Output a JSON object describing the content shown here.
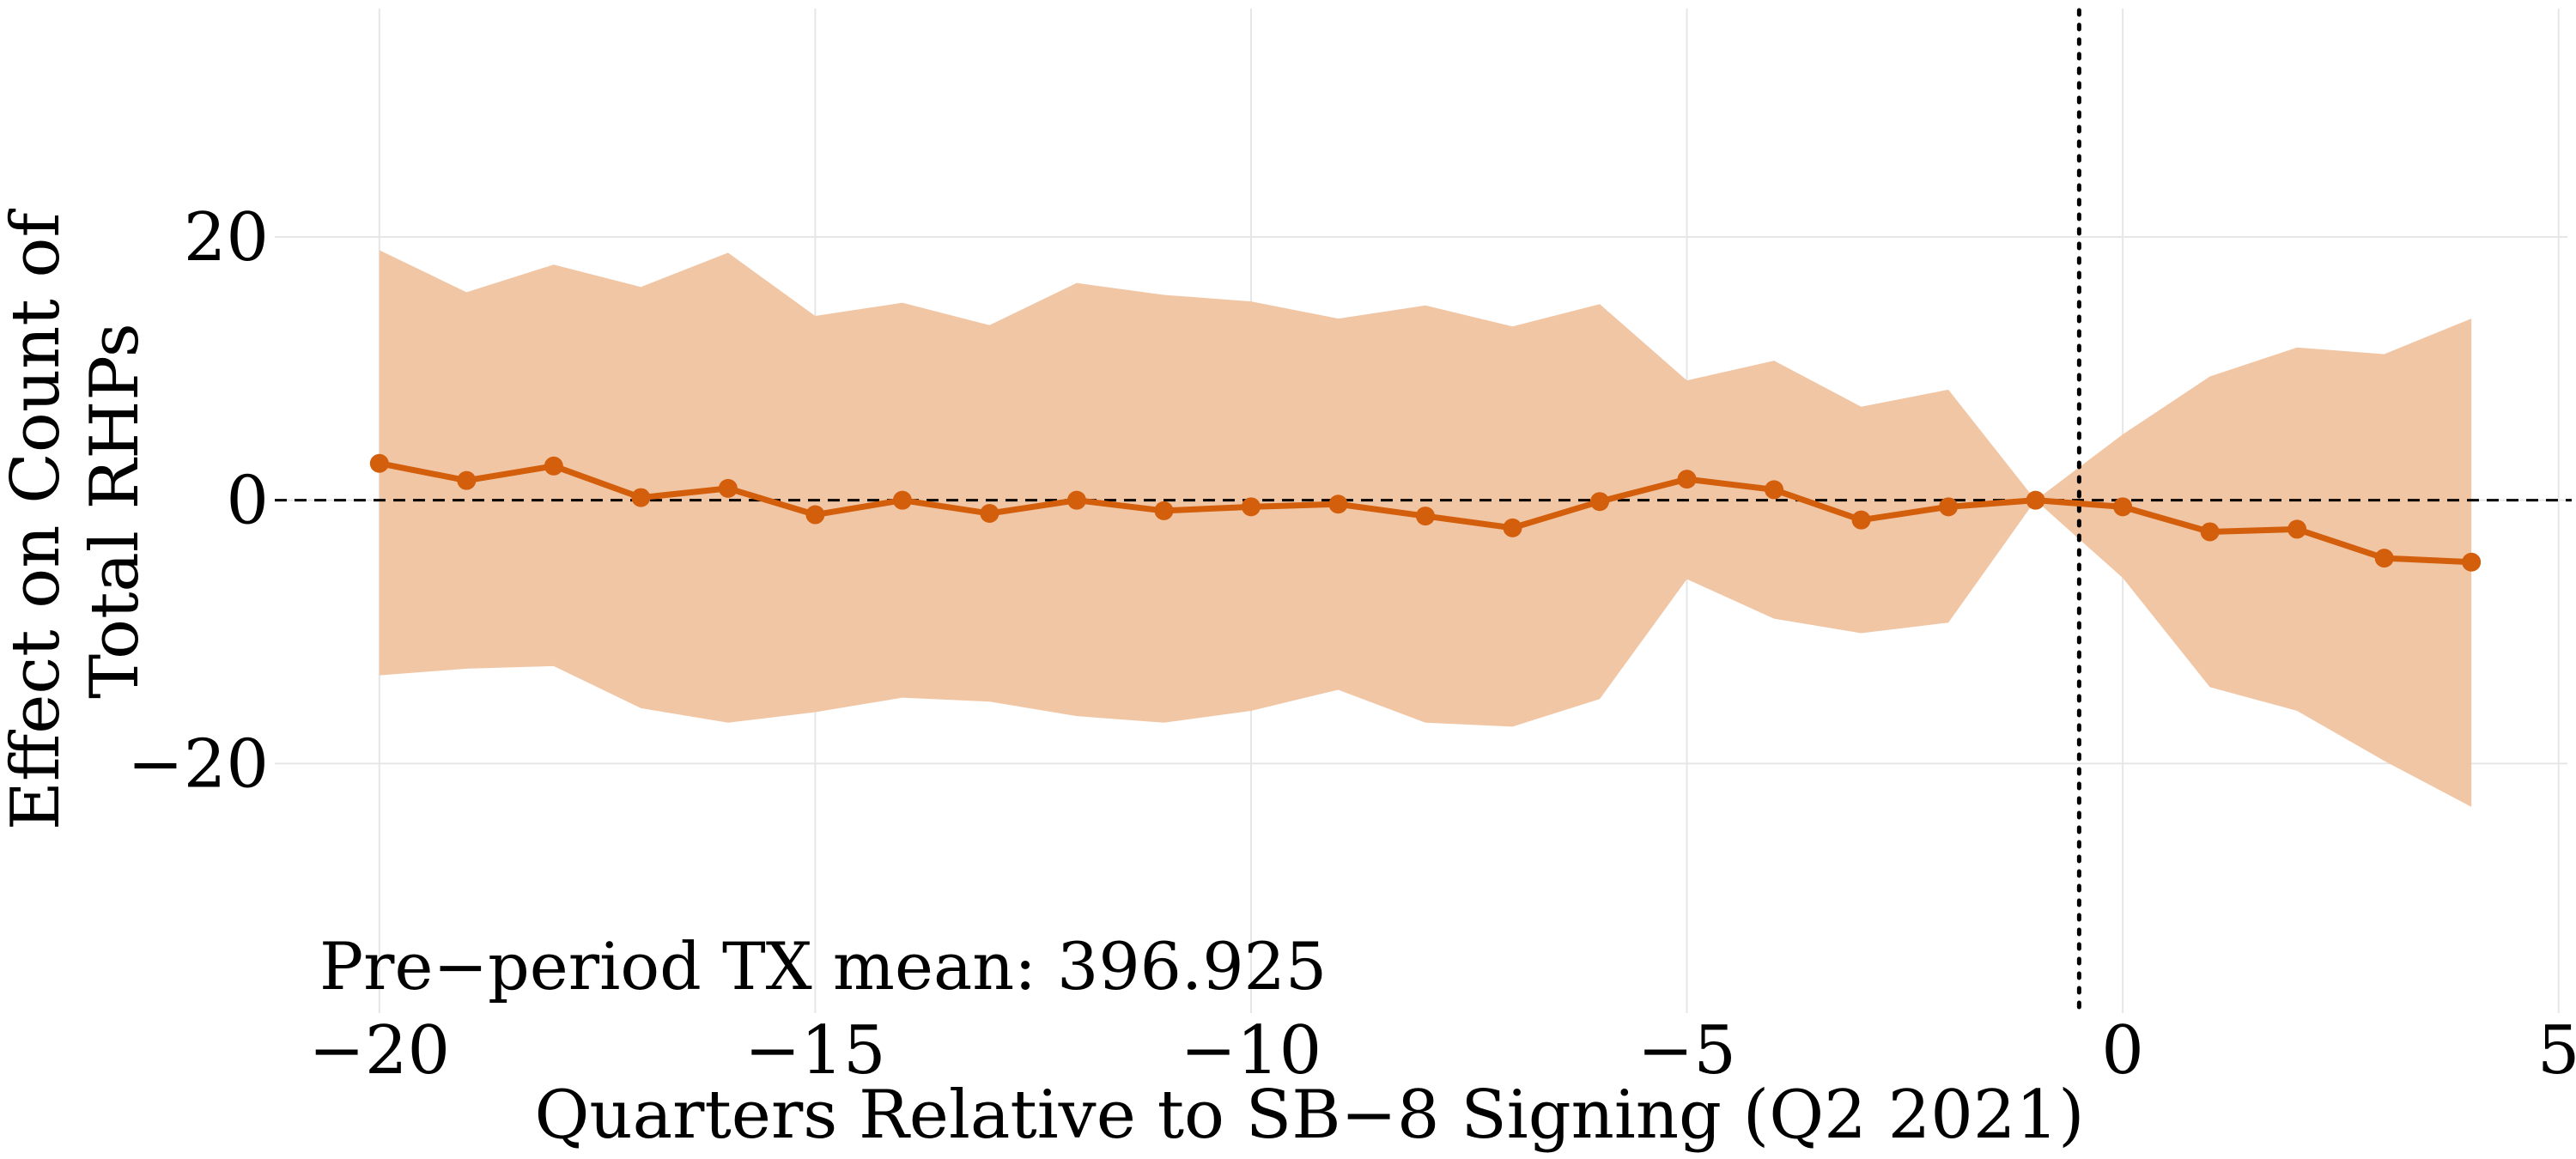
{
  "chart_data": {
    "type": "line",
    "title": "",
    "xlabel": "Quarters Relative to SB−8 Signing (Q2 2021)",
    "ylabel_lines": [
      "Effect on Count of",
      "Total RHPs"
    ],
    "xlim": [
      -21.2,
      5.2
    ],
    "ylim": [
      -37,
      38
    ],
    "x_ticks": [
      -20,
      -15,
      -10,
      -5,
      0,
      5
    ],
    "x_tick_labels": [
      "−20",
      "−15",
      "−10",
      "−5",
      "0",
      "5"
    ],
    "y_ticks": [
      -20,
      0,
      20
    ],
    "y_tick_labels": [
      "−20",
      "0",
      "20"
    ],
    "reference_hline": 0,
    "reference_vline": -0.5,
    "grid": true,
    "annotation": "Pre−period TX mean: 396.925",
    "colors": {
      "line": "#d35f0d",
      "band": "#f1c6a5",
      "reference": "#000000",
      "grid": "#e6e6e6"
    },
    "series": [
      {
        "x": [
          -20,
          -19,
          -18,
          -17,
          -16,
          -15,
          -14,
          -13,
          -12,
          -11,
          -10,
          -9,
          -8,
          -7,
          -6,
          -5,
          -4,
          -3,
          -2,
          -1,
          0,
          1,
          2,
          3,
          4
        ],
        "values": [
          2.8,
          1.5,
          2.6,
          0.2,
          0.9,
          -1.1,
          0.0,
          -1.0,
          0.0,
          -0.8,
          -0.5,
          -0.3,
          -1.2,
          -2.1,
          -0.1,
          1.6,
          0.8,
          -1.5,
          -0.5,
          0.0,
          -0.5,
          -2.4,
          -2.2,
          -4.4,
          -4.7
        ],
        "ci_upper": [
          19.0,
          15.8,
          17.9,
          16.2,
          18.8,
          14.0,
          15.0,
          13.3,
          16.5,
          15.6,
          15.1,
          13.8,
          14.8,
          13.2,
          14.9,
          9.1,
          10.6,
          7.1,
          8.4,
          0.0,
          5.0,
          9.4,
          11.6,
          11.1,
          13.8
        ],
        "ci_lower": [
          -13.3,
          -12.8,
          -12.6,
          -15.8,
          -16.9,
          -16.1,
          -15.0,
          -15.3,
          -16.4,
          -16.9,
          -16.0,
          -14.4,
          -16.9,
          -17.2,
          -15.1,
          -6.0,
          -9.0,
          -10.1,
          -9.3,
          0.0,
          -5.9,
          -14.2,
          -16.0,
          -19.8,
          -23.3
        ]
      }
    ]
  }
}
